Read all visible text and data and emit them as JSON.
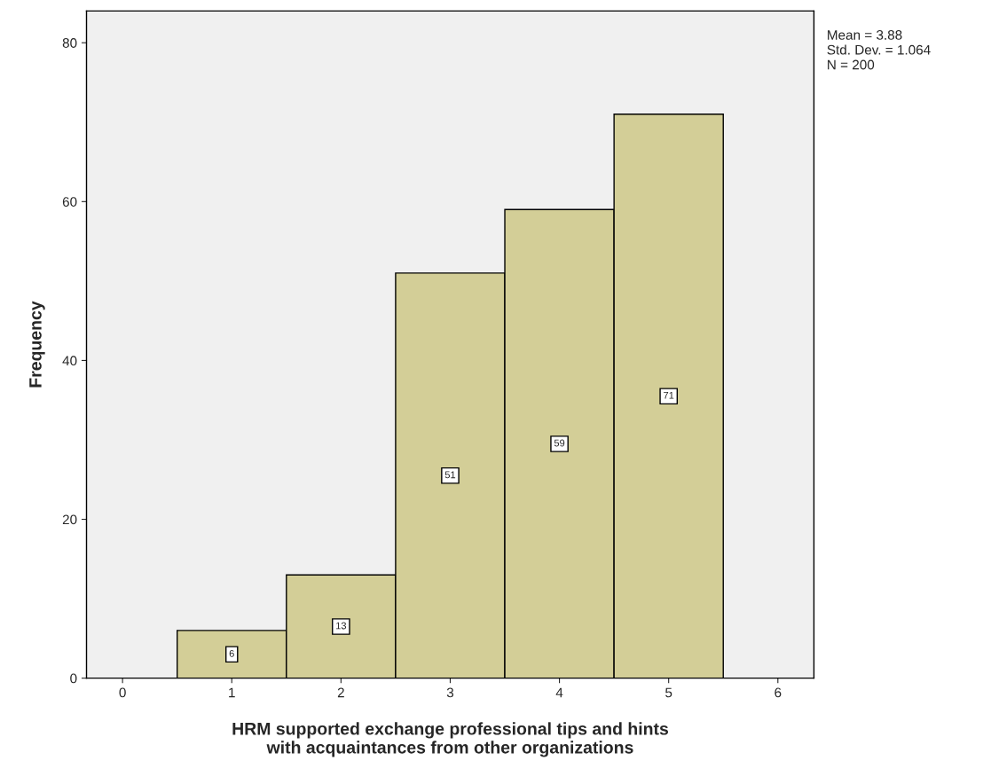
{
  "chart_data": {
    "type": "histogram",
    "xlabel": "HRM supported exchange professional tips and hints\nwith acquaintances from other organizations",
    "ylabel": "Frequency",
    "bins": [
      0.5,
      1.5,
      2.5,
      3.5,
      4.5,
      5.5
    ],
    "values": [
      6,
      13,
      51,
      59,
      71
    ],
    "color": "#d3ce97",
    "xlim": [
      -0.33,
      6.33
    ],
    "xticks": [
      0,
      1,
      2,
      3,
      4,
      5,
      6
    ],
    "ylim": [
      0,
      84
    ],
    "yticks": [
      0,
      20,
      40,
      60,
      80
    ],
    "grid": false,
    "data_labels": true,
    "annotations": [
      "Mean = 3.88",
      "Std. Dev. = 1.064",
      "N = 200"
    ]
  }
}
